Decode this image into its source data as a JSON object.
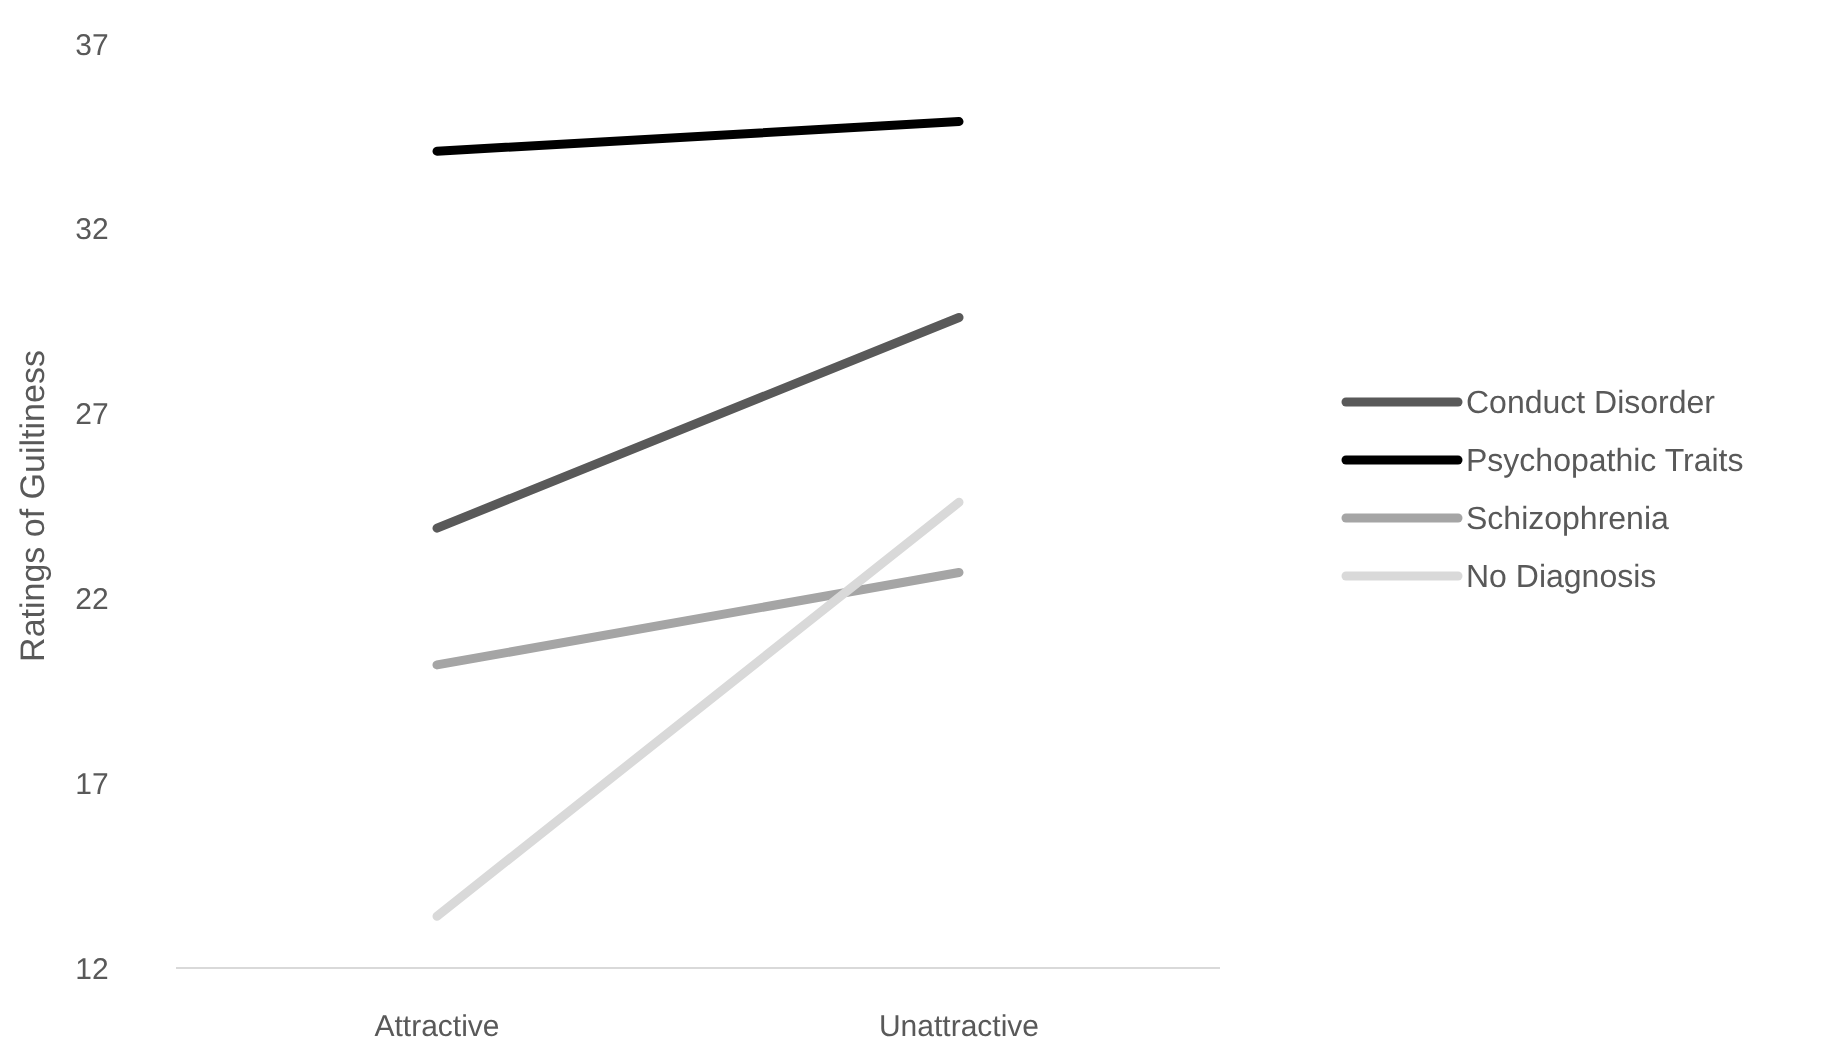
{
  "chart_data": {
    "type": "line",
    "ylabel": "Ratings of Guiltiness",
    "categories": [
      "Attractive",
      "Unattractive"
    ],
    "series": [
      {
        "name": "Conduct Disorder",
        "color": "#595959",
        "values": [
          23.9,
          29.6
        ]
      },
      {
        "name": "Psychopathic Traits",
        "color": "#000000",
        "values": [
          34.1,
          34.9
        ]
      },
      {
        "name": "Schizophrenia",
        "color": "#a5a5a5",
        "values": [
          20.2,
          22.7
        ]
      },
      {
        "name": "No Diagnosis",
        "color": "#d9d9d9",
        "values": [
          13.4,
          24.6
        ]
      }
    ],
    "ylim": [
      12,
      37
    ],
    "yticks": [
      12,
      17,
      22,
      27,
      32,
      37
    ],
    "grid": false,
    "legend": "right",
    "marker": "none",
    "line_style": "solid"
  }
}
